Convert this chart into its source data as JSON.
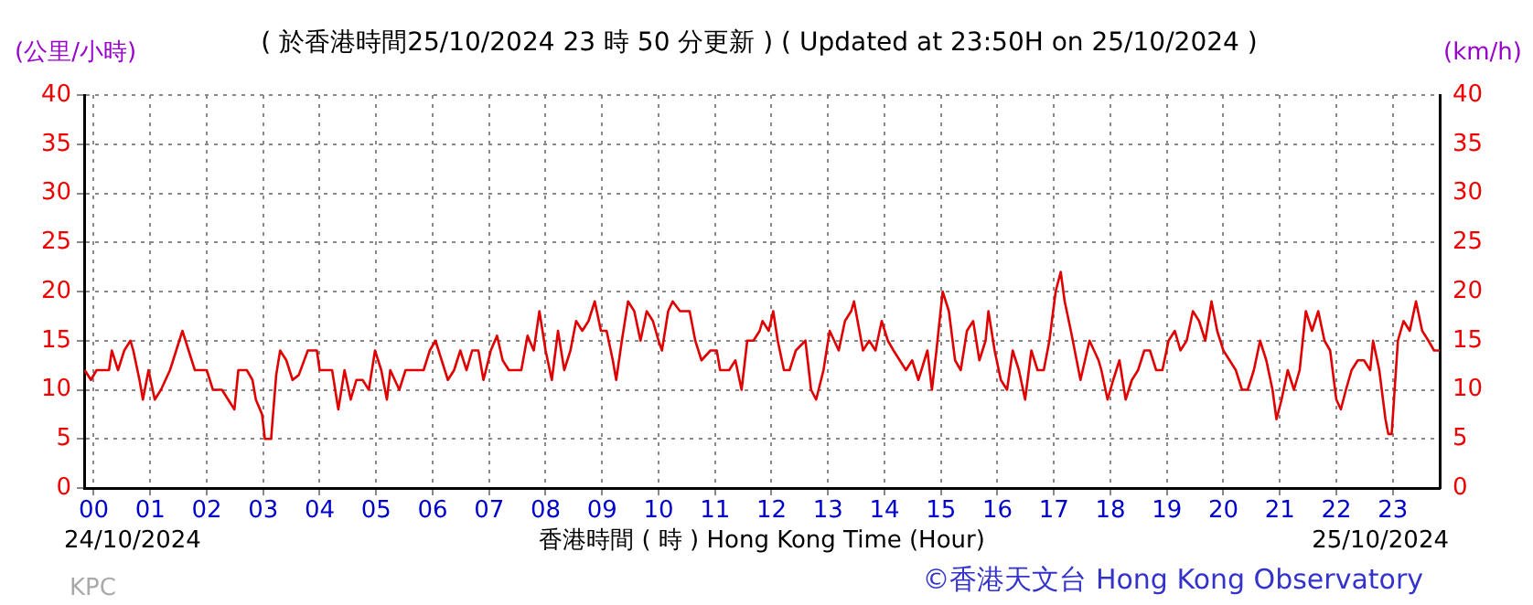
{
  "chart_data": {
    "type": "line",
    "title": "( 於香港時間25/10/2024 23 時 50 分更新 ) ( Updated at 23:50H on 25/10/2024 )",
    "xlabel": "香港時間 ( 時 ) Hong Kong Time (Hour)",
    "ylabel": "(公里/小時)",
    "y2label": "(km/h)",
    "x": [
      -0.16,
      -0.05,
      0.05,
      0.27,
      0.32,
      0.43,
      0.54,
      0.65,
      0.7,
      0.81,
      0.87,
      0.97,
      1.08,
      1.19,
      1.35,
      1.46,
      1.57,
      1.68,
      1.79,
      2.0,
      2.11,
      2.27,
      2.38,
      2.49,
      2.56,
      2.71,
      2.81,
      2.87,
      2.98,
      3.03,
      3.14,
      3.23,
      3.3,
      3.41,
      3.52,
      3.63,
      3.79,
      3.95,
      4.0,
      4.22,
      4.33,
      4.44,
      4.55,
      4.65,
      4.76,
      4.87,
      4.98,
      5.09,
      5.19,
      5.25,
      5.41,
      5.52,
      5.79,
      5.84,
      5.95,
      6.05,
      6.16,
      6.27,
      6.38,
      6.49,
      6.6,
      6.7,
      6.81,
      6.9,
      7.03,
      7.14,
      7.24,
      7.35,
      7.46,
      7.57,
      7.68,
      7.79,
      7.89,
      8.0,
      8.11,
      8.22,
      8.33,
      8.44,
      8.54,
      8.65,
      8.76,
      8.87,
      8.98,
      9.08,
      9.19,
      9.25,
      9.35,
      9.46,
      9.57,
      9.68,
      9.79,
      9.9,
      10.0,
      10.06,
      10.17,
      10.25,
      10.38,
      10.55,
      10.65,
      10.76,
      10.92,
      11.03,
      11.09,
      11.25,
      11.36,
      11.47,
      11.57,
      11.68,
      11.79,
      11.84,
      11.95,
      12.03,
      12.11,
      12.22,
      12.32,
      12.43,
      12.6,
      12.7,
      12.79,
      12.92,
      13.03,
      13.19,
      13.3,
      13.41,
      13.46,
      13.62,
      13.73,
      13.84,
      13.95,
      14.06,
      14.16,
      14.27,
      14.38,
      14.49,
      14.6,
      14.76,
      14.84,
      14.92,
      15.03,
      15.14,
      15.25,
      15.35,
      15.46,
      15.57,
      15.68,
      15.79,
      15.84,
      15.95,
      16.06,
      16.17,
      16.27,
      16.38,
      16.49,
      16.6,
      16.71,
      16.82,
      16.92,
      17.03,
      17.12,
      17.19,
      17.3,
      17.47,
      17.63,
      17.79,
      17.84,
      17.95,
      18.05,
      18.16,
      18.27,
      18.38,
      18.49,
      18.6,
      18.7,
      18.81,
      18.92,
      19.03,
      19.14,
      19.24,
      19.35,
      19.46,
      19.57,
      19.68,
      19.79,
      19.89,
      20.0,
      20.11,
      20.22,
      20.33,
      20.43,
      20.54,
      20.65,
      20.76,
      20.87,
      20.94,
      21.03,
      21.14,
      21.25,
      21.35,
      21.46,
      21.57,
      21.68,
      21.79,
      21.89,
      22.0,
      22.08,
      22.17,
      22.27,
      22.38,
      22.49,
      22.6,
      22.65,
      22.76,
      22.87,
      22.92,
      22.98,
      23.09,
      23.19,
      23.3,
      23.41,
      23.52,
      23.63,
      23.73,
      23.83
    ],
    "series": [
      {
        "color": "#e00000",
        "values": [
          12,
          11,
          12,
          12,
          14,
          12,
          14,
          15,
          14,
          11,
          9,
          12,
          9,
          10,
          12,
          14,
          16,
          14,
          12,
          12,
          10,
          10,
          9,
          8,
          12,
          12,
          11,
          9,
          7.5,
          5,
          5,
          11.5,
          14,
          13,
          11,
          11.5,
          14,
          14,
          12,
          12,
          8,
          12,
          9,
          11,
          11,
          10,
          14,
          12,
          9,
          12,
          10,
          12,
          12,
          12,
          14,
          15,
          13,
          11,
          12,
          14,
          12,
          14,
          14,
          11,
          14,
          15.5,
          13,
          12,
          12,
          12,
          15.5,
          14,
          18,
          14,
          11,
          16,
          12,
          14,
          17,
          16,
          17,
          19,
          16,
          16,
          13,
          11,
          15,
          19,
          18,
          15,
          18,
          17,
          15,
          14,
          18,
          19,
          18,
          18,
          15,
          13,
          14,
          14,
          12,
          12,
          13,
          10,
          15,
          15,
          16,
          17,
          16,
          18,
          15,
          12,
          12,
          14,
          15,
          10,
          9,
          12,
          16,
          14,
          17,
          18,
          19,
          14,
          15,
          14,
          17,
          15,
          14,
          13,
          12,
          13,
          11,
          14,
          10,
          14,
          20,
          18,
          13,
          12,
          16,
          17,
          13,
          15,
          18,
          14,
          11,
          10,
          14,
          12,
          9,
          14,
          12,
          12,
          15,
          20,
          22,
          19,
          16,
          11,
          15,
          13,
          12,
          9,
          11,
          13,
          9,
          11,
          12,
          14,
          14,
          12,
          12,
          15,
          16,
          14,
          15,
          18,
          17,
          15,
          19,
          16,
          14,
          13,
          12,
          10,
          10,
          12,
          15,
          13,
          10,
          7,
          9,
          12,
          10,
          12,
          18,
          16,
          18,
          15,
          14,
          9,
          8,
          10,
          12,
          13,
          13,
          12,
          15,
          12,
          7,
          5.5,
          5.5,
          15,
          17,
          16,
          19,
          16,
          15,
          14,
          14
        ]
      }
    ],
    "xlim": [
      -0.17,
      23.83
    ],
    "xticks": [
      {
        "value": 0,
        "label": "00"
      },
      {
        "value": 1,
        "label": "01"
      },
      {
        "value": 2,
        "label": "02"
      },
      {
        "value": 3,
        "label": "03"
      },
      {
        "value": 4,
        "label": "04"
      },
      {
        "value": 5,
        "label": "05"
      },
      {
        "value": 6,
        "label": "06"
      },
      {
        "value": 7,
        "label": "07"
      },
      {
        "value": 8,
        "label": "08"
      },
      {
        "value": 9,
        "label": "09"
      },
      {
        "value": 10,
        "label": "10"
      },
      {
        "value": 11,
        "label": "11"
      },
      {
        "value": 12,
        "label": "12"
      },
      {
        "value": 13,
        "label": "13"
      },
      {
        "value": 14,
        "label": "14"
      },
      {
        "value": 15,
        "label": "15"
      },
      {
        "value": 16,
        "label": "16"
      },
      {
        "value": 17,
        "label": "17"
      },
      {
        "value": 18,
        "label": "18"
      },
      {
        "value": 19,
        "label": "19"
      },
      {
        "value": 20,
        "label": "20"
      },
      {
        "value": 21,
        "label": "21"
      },
      {
        "value": 22,
        "label": "22"
      },
      {
        "value": 23,
        "label": "23"
      }
    ],
    "ylim": [
      0,
      40
    ],
    "yticks": [
      0,
      5,
      10,
      15,
      20,
      25,
      30,
      35,
      40
    ],
    "y2lim": [
      0,
      40
    ],
    "y2ticks": [
      0,
      5,
      10,
      15,
      20,
      25,
      30,
      35,
      40
    ],
    "grid": true,
    "marker": "none",
    "line_style": "solid",
    "annotations": [
      "24/10/2024",
      "25/10/2024",
      "KPC",
      "©香港天文台 Hong Kong Observatory"
    ]
  }
}
